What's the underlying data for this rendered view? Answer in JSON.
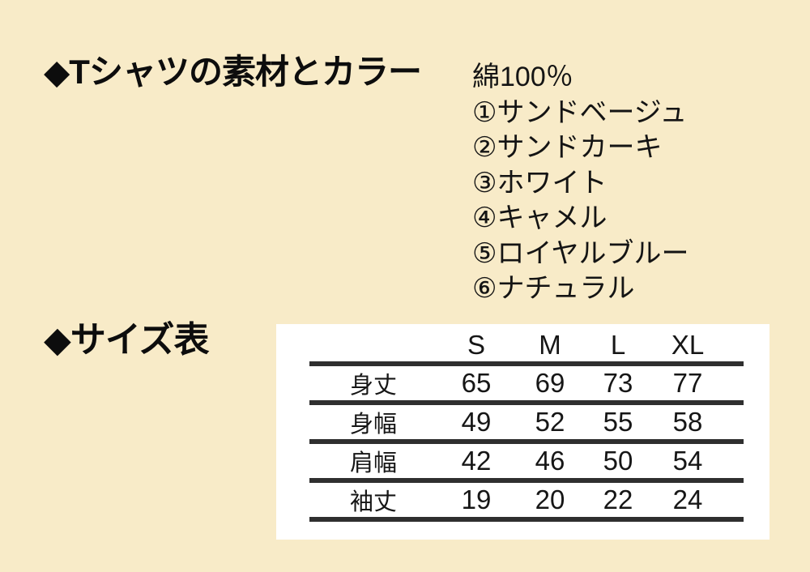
{
  "page": {
    "background_color": "#f8ebc8",
    "panel_color": "#ffffff",
    "rule_color": "#2f2f2f"
  },
  "material_section": {
    "heading": "◆Tシャツの素材とカラー",
    "material": "綿100％",
    "colors": [
      "①サンドベージュ",
      "②サンドカーキ",
      "③ホワイト",
      "④キャメル",
      "⑤ロイヤルブルー",
      "⑥ナチュラル"
    ]
  },
  "size_section": {
    "heading": "◆サイズ表",
    "table": {
      "columns": [
        "S",
        "M",
        "L",
        "XL"
      ],
      "rows": [
        {
          "label": "身丈",
          "values": [
            "65",
            "69",
            "73",
            "77"
          ]
        },
        {
          "label": "身幅",
          "values": [
            "49",
            "52",
            "55",
            "58"
          ]
        },
        {
          "label": "肩幅",
          "values": [
            "42",
            "46",
            "50",
            "54"
          ]
        },
        {
          "label": "袖丈",
          "values": [
            "19",
            "20",
            "22",
            "24"
          ]
        }
      ]
    }
  }
}
